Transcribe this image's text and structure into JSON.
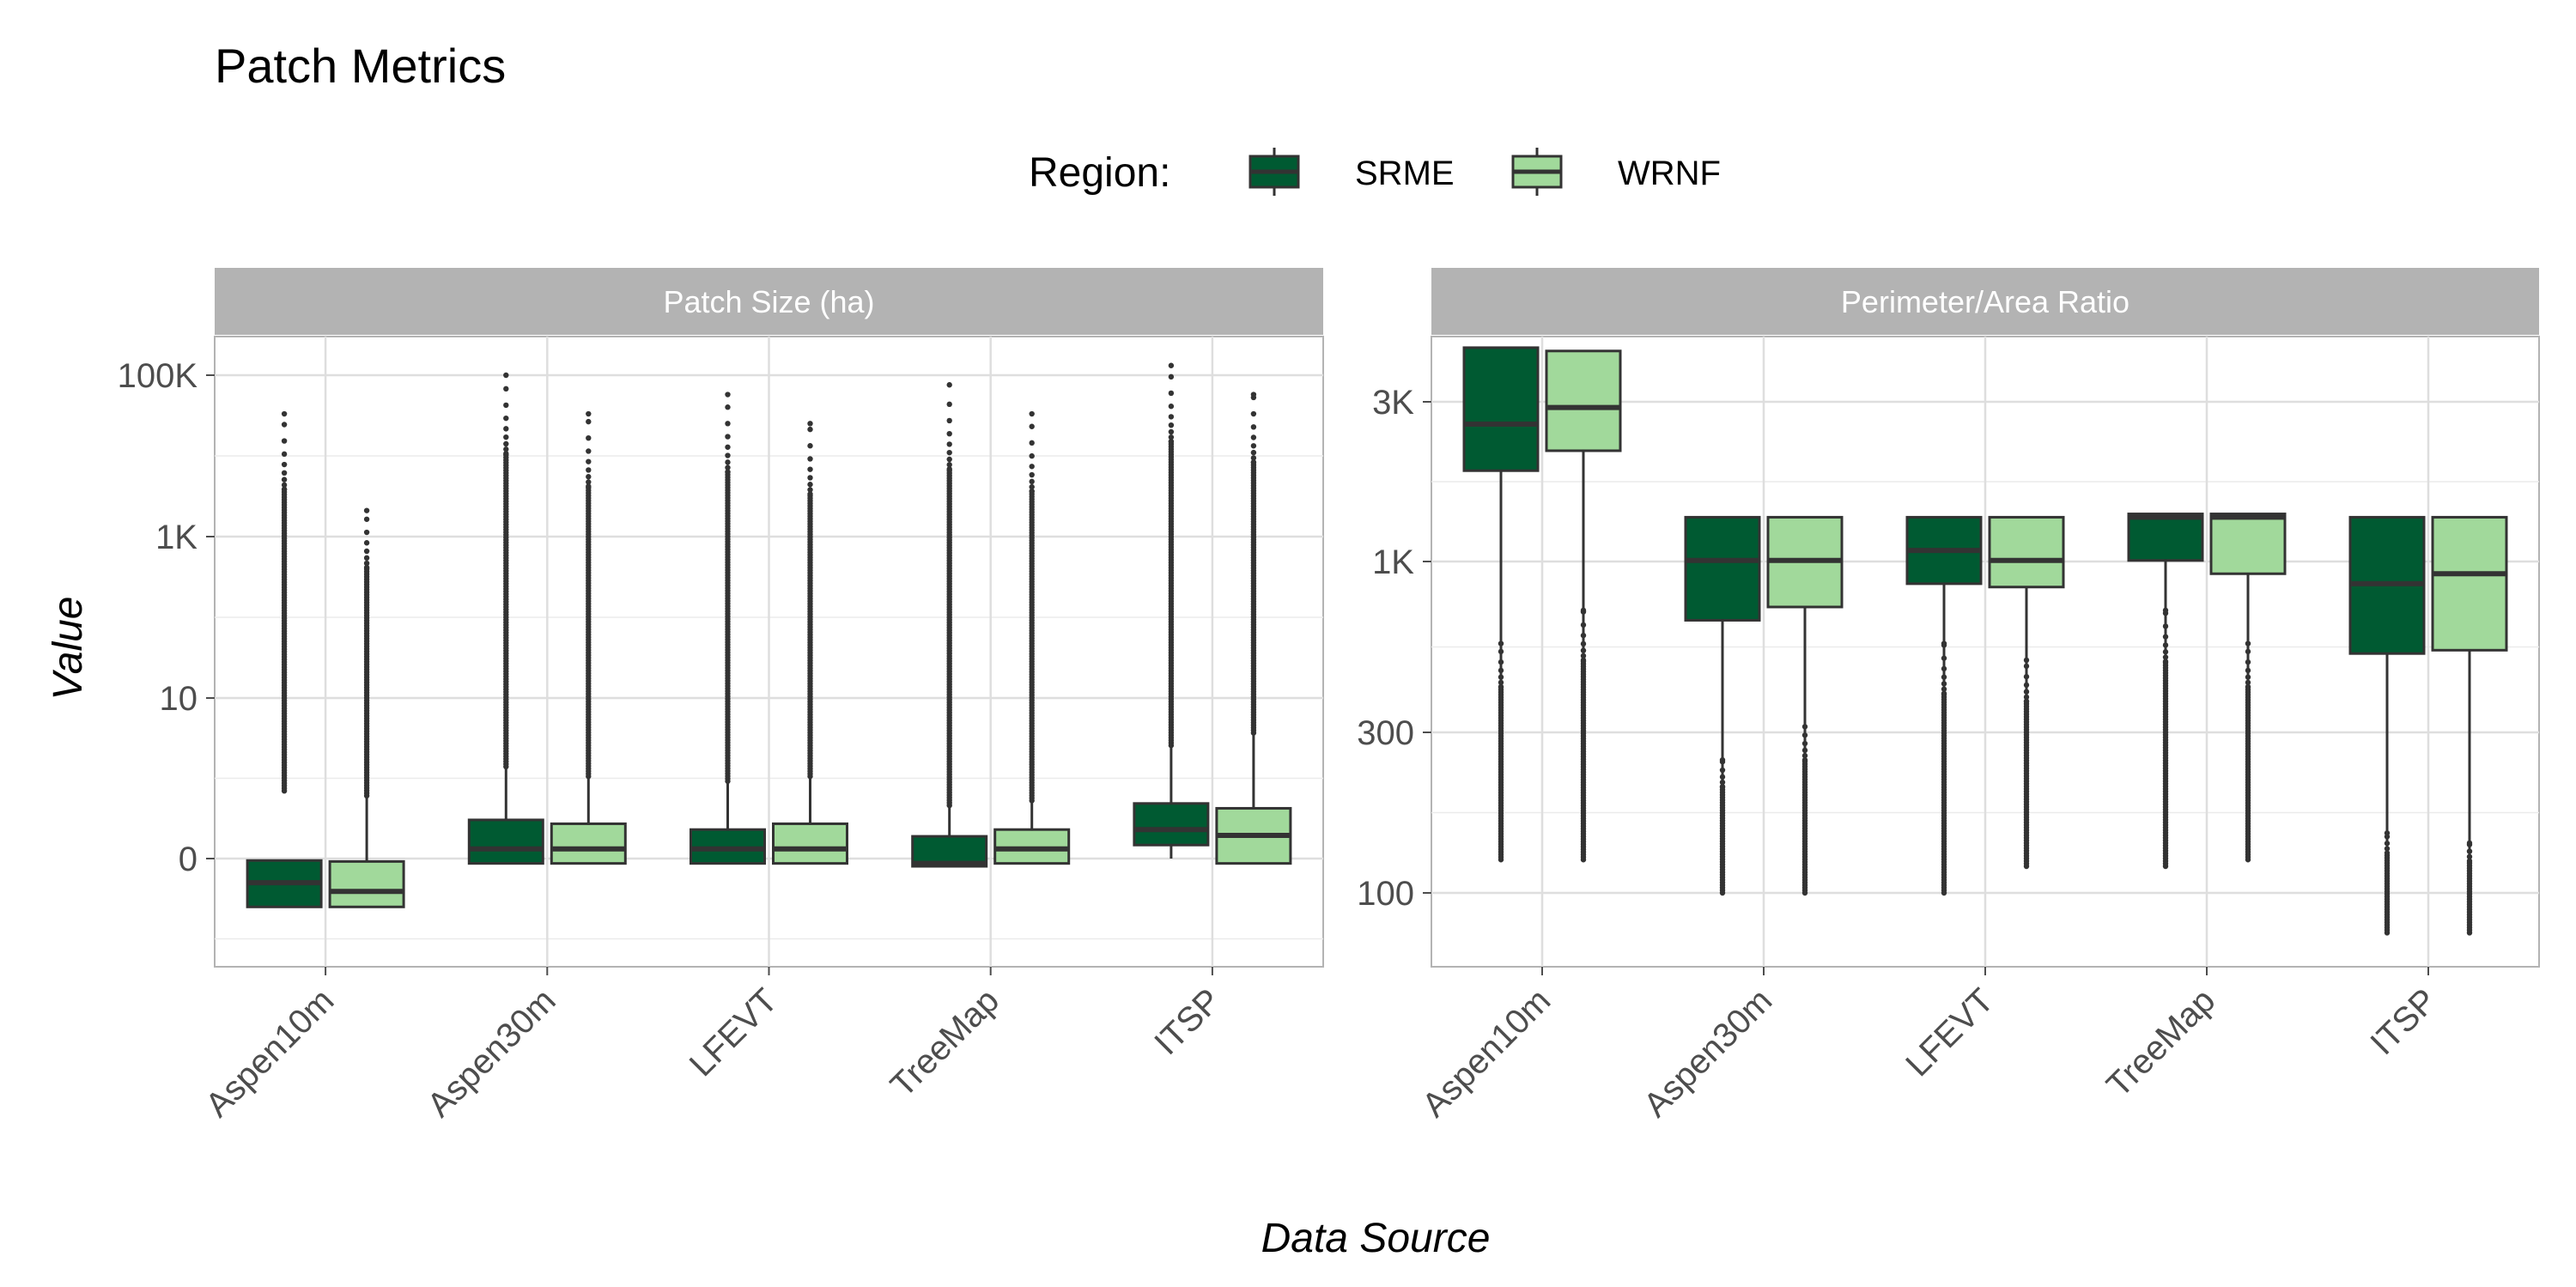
{
  "title": "Patch Metrics",
  "xlabel": "Data Source",
  "ylabel": "Value",
  "legend": {
    "title": "Region:",
    "placement": "top-center",
    "items": [
      {
        "name": "SRME",
        "color": "#005A32"
      },
      {
        "name": "WRNF",
        "color": "#A1D99B"
      }
    ]
  },
  "colors": {
    "strip_bg": "#B3B3B3",
    "strip_text": "#FFFFFF",
    "grid": "#DEDEDE",
    "panel_border": "#B3B3B3",
    "box_line": "#333333",
    "axis_text": "#4D4D4D"
  },
  "chart_data": [
    {
      "type": "box",
      "facet": "Patch Size (ha)",
      "scale": "log-like",
      "grid": true,
      "categories": [
        "Aspen10m",
        "Aspen30m",
        "LFEVT",
        "TreeMap",
        "ITSP"
      ],
      "tick_labels": [
        "0",
        "10",
        "1K",
        "100K"
      ],
      "ylim": [
        -0.7,
        4.8
      ],
      "series": [
        {
          "name": "SRME",
          "boxes": [
            {
              "whisker_low": -0.5,
              "q1": -0.5,
              "median": -0.25,
              "q3": -0.02,
              "whisker_high": -0.02,
              "outlier_min": 0.7,
              "outlier_max": 4.6
            },
            {
              "whisker_low": -0.05,
              "q1": -0.05,
              "median": 0.1,
              "q3": 0.4,
              "whisker_high": 0.95,
              "outlier_min": 0.95,
              "outlier_max": 5.0
            },
            {
              "whisker_low": -0.05,
              "q1": -0.05,
              "median": 0.1,
              "q3": 0.3,
              "whisker_high": 0.8,
              "outlier_min": 0.8,
              "outlier_max": 4.8
            },
            {
              "whisker_low": -0.08,
              "q1": -0.08,
              "median": -0.05,
              "q3": 0.23,
              "whisker_high": 0.55,
              "outlier_min": 0.55,
              "outlier_max": 4.9
            },
            {
              "whisker_low": 0.0,
              "q1": 0.14,
              "median": 0.3,
              "q3": 0.57,
              "whisker_high": 1.17,
              "outlier_min": 1.17,
              "outlier_max": 5.1
            }
          ]
        },
        {
          "name": "WRNF",
          "boxes": [
            {
              "whisker_low": -0.5,
              "q1": -0.5,
              "median": -0.34,
              "q3": -0.03,
              "whisker_high": 0.65,
              "outlier_min": 0.65,
              "outlier_max": 3.6
            },
            {
              "whisker_low": -0.05,
              "q1": -0.05,
              "median": 0.1,
              "q3": 0.36,
              "whisker_high": 0.85,
              "outlier_min": 0.85,
              "outlier_max": 4.6
            },
            {
              "whisker_low": -0.05,
              "q1": -0.05,
              "median": 0.1,
              "q3": 0.36,
              "whisker_high": 0.85,
              "outlier_min": 0.85,
              "outlier_max": 4.5
            },
            {
              "whisker_low": -0.05,
              "q1": -0.05,
              "median": 0.1,
              "q3": 0.3,
              "whisker_high": 0.6,
              "outlier_min": 0.6,
              "outlier_max": 4.6
            },
            {
              "whisker_low": -0.05,
              "q1": -0.05,
              "median": 0.24,
              "q3": 0.52,
              "whisker_high": 1.3,
              "outlier_min": 1.3,
              "outlier_max": 4.8
            }
          ]
        }
      ]
    },
    {
      "type": "box",
      "facet": "Perimeter/Area Ratio",
      "scale": "log",
      "grid": true,
      "categories": [
        "Aspen10m",
        "Aspen30m",
        "LFEVT",
        "TreeMap",
        "ITSP"
      ],
      "tick_labels": [
        "100",
        "300",
        "1K",
        "3K"
      ],
      "ylim": [
        1.9,
        3.93
      ],
      "series": [
        {
          "name": "SRME",
          "boxes": [
            {
              "whisker_low": 2.15,
              "q1": 3.27,
              "median": 3.41,
              "q3": 3.64,
              "whisker_high": 3.64,
              "outlier_min": 2.1,
              "outlier_max": 2.75
            },
            {
              "whisker_low": 2.05,
              "q1": 2.82,
              "median": 3.0,
              "q3": 3.13,
              "whisker_high": 3.13,
              "outlier_min": 2.0,
              "outlier_max": 2.4
            },
            {
              "whisker_low": 2.05,
              "q1": 2.93,
              "median": 3.03,
              "q3": 3.13,
              "whisker_high": 3.13,
              "outlier_min": 2.0,
              "outlier_max": 2.75
            },
            {
              "whisker_low": 2.1,
              "q1": 3.0,
              "median": 3.13,
              "q3": 3.14,
              "whisker_high": 3.14,
              "outlier_min": 2.08,
              "outlier_max": 2.85
            },
            {
              "whisker_low": 1.9,
              "q1": 2.72,
              "median": 2.93,
              "q3": 3.13,
              "whisker_high": 3.13,
              "outlier_min": 1.88,
              "outlier_max": 2.18
            }
          ]
        },
        {
          "name": "WRNF",
          "boxes": [
            {
              "whisker_low": 2.15,
              "q1": 3.33,
              "median": 3.46,
              "q3": 3.63,
              "whisker_high": 3.63,
              "outlier_min": 2.1,
              "outlier_max": 2.85
            },
            {
              "whisker_low": 2.05,
              "q1": 2.86,
              "median": 3.0,
              "q3": 3.13,
              "whisker_high": 3.13,
              "outlier_min": 2.0,
              "outlier_max": 2.5
            },
            {
              "whisker_low": 2.1,
              "q1": 2.92,
              "median": 3.0,
              "q3": 3.13,
              "whisker_high": 3.13,
              "outlier_min": 2.08,
              "outlier_max": 2.7
            },
            {
              "whisker_low": 2.12,
              "q1": 2.96,
              "median": 3.13,
              "q3": 3.14,
              "whisker_high": 3.14,
              "outlier_min": 2.1,
              "outlier_max": 2.75
            },
            {
              "whisker_low": 1.95,
              "q1": 2.73,
              "median": 2.96,
              "q3": 3.13,
              "whisker_high": 3.13,
              "outlier_min": 1.88,
              "outlier_max": 2.15
            }
          ]
        }
      ]
    }
  ]
}
